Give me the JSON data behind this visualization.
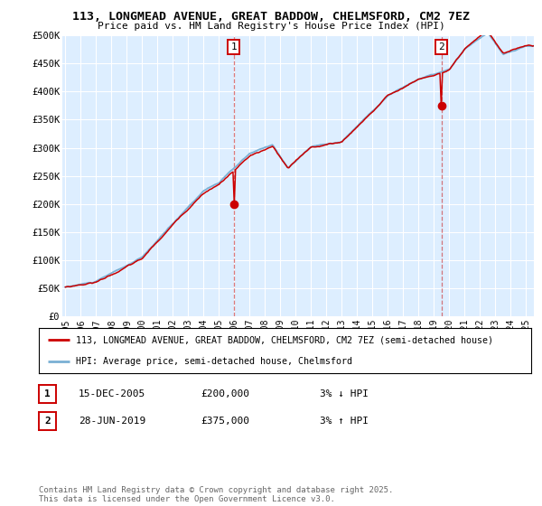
{
  "title_line1": "113, LONGMEAD AVENUE, GREAT BADDOW, CHELMSFORD, CM2 7EZ",
  "title_line2": "Price paid vs. HM Land Registry's House Price Index (HPI)",
  "ylabel_ticks": [
    "£0",
    "£50K",
    "£100K",
    "£150K",
    "£200K",
    "£250K",
    "£300K",
    "£350K",
    "£400K",
    "£450K",
    "£500K"
  ],
  "ytick_values": [
    0,
    50000,
    100000,
    150000,
    200000,
    250000,
    300000,
    350000,
    400000,
    450000,
    500000
  ],
  "ylim": [
    0,
    500000
  ],
  "xlim_start": 1994.8,
  "xlim_end": 2025.5,
  "xtick_years": [
    1995,
    1996,
    1997,
    1998,
    1999,
    2000,
    2001,
    2002,
    2003,
    2004,
    2005,
    2006,
    2007,
    2008,
    2009,
    2010,
    2011,
    2012,
    2013,
    2014,
    2015,
    2016,
    2017,
    2018,
    2019,
    2020,
    2021,
    2022,
    2023,
    2024,
    2025
  ],
  "sale1_x": 2005.96,
  "sale1_y": 200000,
  "sale2_x": 2019.49,
  "sale2_y": 375000,
  "line_color_red": "#cc0000",
  "line_color_blue": "#7ab0d4",
  "background_plot": "#ddeeff",
  "grid_color": "#ffffff",
  "legend_label_red": "113, LONGMEAD AVENUE, GREAT BADDOW, CHELMSFORD, CM2 7EZ (semi-detached house)",
  "legend_label_blue": "HPI: Average price, semi-detached house, Chelmsford",
  "footer": "Contains HM Land Registry data © Crown copyright and database right 2025.\nThis data is licensed under the Open Government Licence v3.0."
}
